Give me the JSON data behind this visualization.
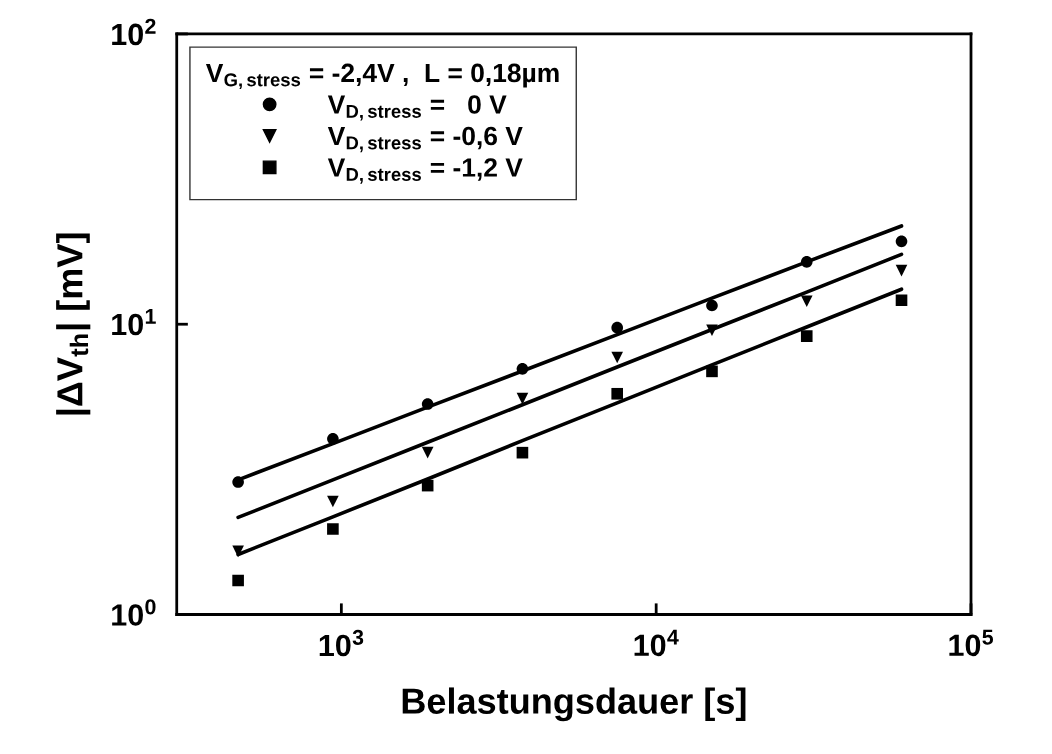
{
  "chart_data": {
    "type": "scatter",
    "xlabel": "Belastungsdauer [s]",
    "ylabel": "|ΔV$_{th}$| [mV]",
    "log": "xy",
    "xlim": [
      300,
      100000
    ],
    "ylim": [
      1,
      100
    ],
    "xticks": [
      {
        "value": 1000,
        "label": "10$^{3}$"
      },
      {
        "value": 10000,
        "label": "10$^{4}$"
      },
      {
        "value": 100000,
        "label": "10$^{5}$"
      }
    ],
    "yticks": [
      {
        "value": 1,
        "label": "10$^{0}$"
      },
      {
        "value": 10,
        "label": "10$^{1}$"
      },
      {
        "value": 100,
        "label": "10$^{2}$"
      }
    ],
    "grid": false,
    "legend": "top left",
    "legend_title": "V$_{G,stress}$ = -2,4V ,  L = 0,18µm",
    "x": [
      470,
      940,
      1880,
      3760,
      7520,
      15040,
      30080,
      60160
    ],
    "series": [
      {
        "name": "V$_{D,stress}$ =   0 V",
        "color": "#000000",
        "marker": "circle",
        "values": [
          2.86,
          4.03,
          5.31,
          7.02,
          9.73,
          11.6,
          16.4,
          19.3
        ]
      },
      {
        "name": "V$_{D,stress}$ = -0,6 V",
        "color": "#000000",
        "marker": "triangle",
        "values": [
          1.65,
          2.45,
          3.61,
          5.54,
          7.68,
          9.53,
          12.0,
          15.3
        ]
      },
      {
        "name": "V$_{D,stress}$ = -1,2 V",
        "color": "#000000",
        "marker": "square",
        "values": [
          1.31,
          1.97,
          2.78,
          3.61,
          5.76,
          6.88,
          9.1,
          12.1
        ]
      },
      {
        "type": "line",
        "color": "#000000",
        "marker": "none",
        "line_style": "solid",
        "values": [
          2.91,
          3.88,
          5.18,
          6.9,
          9.21,
          12.3,
          16.4,
          21.8
        ]
      },
      {
        "type": "line",
        "color": "#000000",
        "marker": "none",
        "line_style": "solid",
        "values": [
          2.16,
          2.91,
          3.92,
          5.28,
          7.12,
          9.59,
          12.9,
          17.4
        ]
      },
      {
        "type": "line",
        "color": "#000000",
        "marker": "none",
        "line_style": "solid",
        "values": [
          1.61,
          2.17,
          2.93,
          3.97,
          5.36,
          7.24,
          9.78,
          13.2
        ]
      }
    ]
  }
}
